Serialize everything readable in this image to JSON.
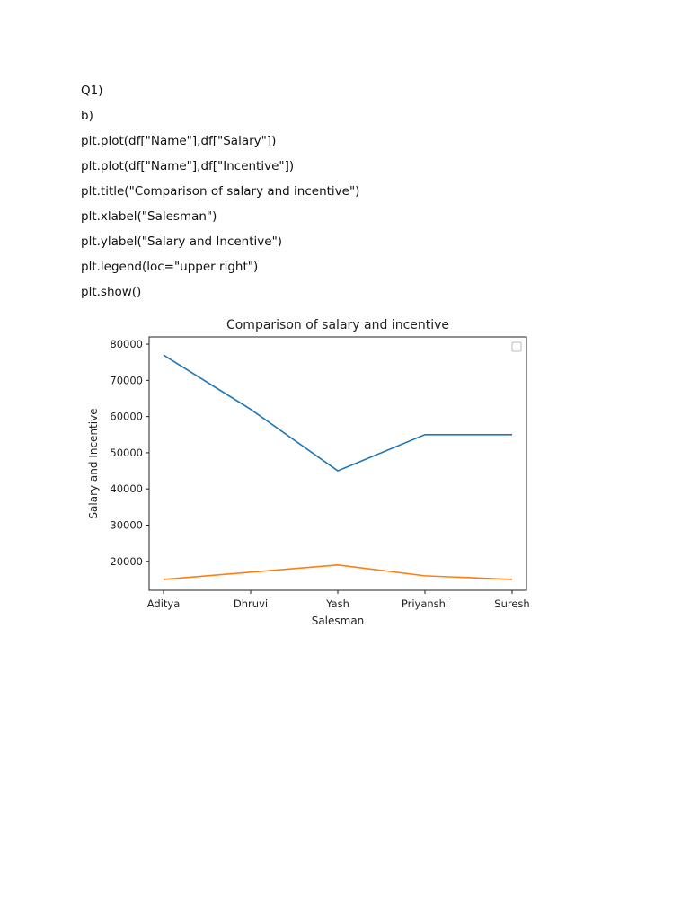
{
  "document": {
    "lines": [
      "Q1)",
      "b)",
      "plt.plot(df[\"Name\"],df[\"Salary\"])",
      "plt.plot(df[\"Name\"],df[\"Incentive\"])",
      "plt.title(\"Comparison of salary and incentive\")",
      "plt.xlabel(\"Salesman\")",
      "plt.ylabel(\"Salary and Incentive\")",
      "plt.legend(loc=\"upper right\")",
      "plt.show()"
    ]
  },
  "chart_data": {
    "type": "line",
    "title": "Comparison of salary and incentive",
    "xlabel": "Salesman",
    "ylabel": "Salary and Incentive",
    "categories": [
      "Aditya",
      "Dhruvi",
      "Yash",
      "Priyanshi",
      "Suresh"
    ],
    "series": [
      {
        "values": [
          77000,
          62000,
          45000,
          55000,
          55000
        ],
        "color": "#1f77b4"
      },
      {
        "values": [
          15000,
          17000,
          19000,
          16000,
          15000
        ],
        "color": "#ff7f0e"
      }
    ],
    "ylim": [
      12000,
      82000
    ],
    "yticks": [
      20000,
      30000,
      40000,
      50000,
      60000,
      70000,
      80000
    ],
    "legend": "upper right (empty box)",
    "grid": false
  }
}
